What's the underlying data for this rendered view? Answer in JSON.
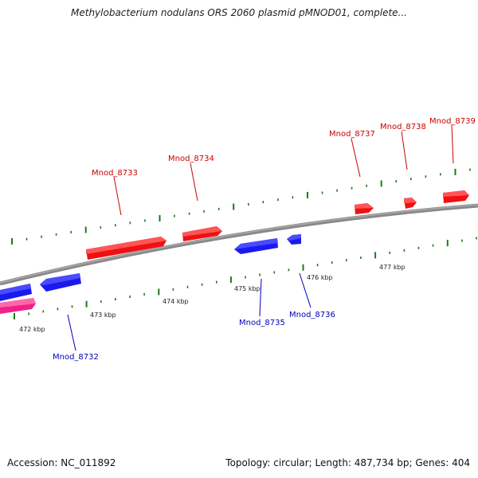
{
  "title": "Methylobacterium nodulans ORS 2060 plasmid pMNOD01, complete...",
  "footer": {
    "accession": "Accession: NC_011892",
    "summary": "Topology: circular; Length: 487,734 bp; Genes: 404"
  },
  "colors": {
    "forward": "#ee1111",
    "reverse": "#1a1aee",
    "pink": "#ee2288",
    "backbone": "#888888",
    "tick": "#1a7a1a",
    "forward_label": "#cc0000",
    "reverse_label": "#0000bb"
  },
  "scale_labels": [
    "472 kbp",
    "473 kbp",
    "474 kbp",
    "475 kbp",
    "476 kbp",
    "477 kbp"
  ],
  "genes": [
    {
      "name": "Mnod_8733",
      "strand": "forward"
    },
    {
      "name": "Mnod_8734",
      "strand": "forward"
    },
    {
      "name": "Mnod_8737",
      "strand": "forward"
    },
    {
      "name": "Mnod_8738",
      "strand": "forward"
    },
    {
      "name": "Mnod_8739",
      "strand": "forward"
    },
    {
      "name": "Mnod_8732",
      "strand": "reverse"
    },
    {
      "name": "Mnod_8735",
      "strand": "reverse"
    },
    {
      "name": "Mnod_8736",
      "strand": "reverse"
    }
  ]
}
